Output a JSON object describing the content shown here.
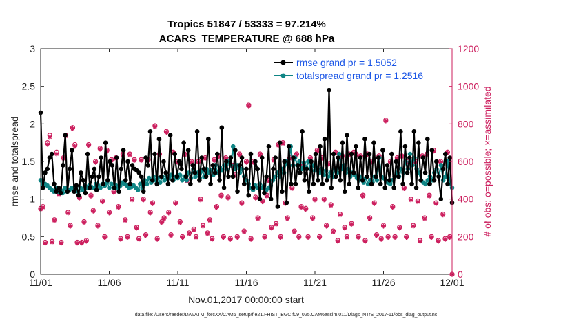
{
  "chart_data": {
    "type": "line",
    "title": "Tropics 51847 / 53333 = 97.214%",
    "subtitle": "ACARS_TEMPERATURE @ 688 hPa",
    "xlabel": "Nov.01,2017 00:00:00 start",
    "ylabel": "rmse and totalspread",
    "y2label": "# of obs: o=possible; ×=assimilated",
    "x_ticks": [
      "11/01",
      "11/06",
      "11/11",
      "11/16",
      "11/21",
      "11/26",
      "12/01"
    ],
    "x_range_days": [
      0,
      30
    ],
    "ylim": [
      0,
      3
    ],
    "y_ticks": [
      "0",
      "0.5",
      "1",
      "1.5",
      "2",
      "2.5",
      "3"
    ],
    "y2lim": [
      0,
      1200
    ],
    "y2_ticks": [
      "0",
      "200",
      "400",
      "600",
      "800",
      "1000",
      "1200"
    ],
    "footnote": "data file: /Users/raeder/DAI/ATM_forcXX/CAM6_setup/f.e21.FHIST_BGC.f09_025.CAM6assim.011/Diags_NTrS_2017-11/obs_diag_output.nc",
    "colors": {
      "rmse": "#000000",
      "spread": "#0f8585",
      "obs": "#cc1f5e",
      "legend_text": "#1a55e6"
    },
    "series": [
      {
        "name": "rmse",
        "legend": "rmse grand pr = 1.5052",
        "values": [
          2.15,
          1.15,
          1.35,
          1.4,
          1.55,
          1.6,
          1.2,
          1.1,
          1.15,
          1.08,
          1.45,
          1.85,
          1.1,
          1.4,
          1.65,
          1.1,
          1.18,
          1.05,
          1.35,
          1.25,
          1.08,
          1.6,
          1.15,
          1.3,
          1.4,
          1.12,
          1.3,
          1.55,
          1.2,
          1.75,
          1.25,
          1.5,
          1.45,
          1.15,
          1.55,
          1.1,
          1.4,
          1.65,
          1.25,
          1.5,
          1.2,
          1.45,
          1.4,
          1.38,
          1.35,
          1.3,
          1.1,
          1.55,
          1.45,
          1.9,
          1.25,
          1.6,
          1.2,
          1.8,
          1.3,
          1.5,
          1.35,
          1.2,
          1.85,
          1.25,
          1.6,
          1.3,
          1.5,
          1.4,
          1.75,
          1.3,
          1.65,
          1.2,
          1.45,
          1.35,
          1.9,
          1.25,
          1.55,
          1.4,
          1.3,
          1.8,
          1.2,
          1.45,
          1.35,
          1.6,
          1.25,
          1.95,
          1.15,
          1.5,
          1.3,
          1.55,
          1.3,
          1.65,
          1.1,
          1.45,
          1.55,
          1.2,
          1.4,
          1.05,
          1.6,
          1.15,
          1.5,
          1.4,
          1.0,
          1.55,
          1.08,
          1.3,
          1.7,
          1.0,
          1.4,
          1.55,
          0.9,
          1.75,
          1.1,
          1.5,
          0.95,
          1.7,
          1.2,
          1.55,
          1.2,
          1.45,
          1.35,
          1.9,
          1.25,
          1.4,
          1.1,
          1.5,
          1.2,
          1.6,
          1.25,
          1.7,
          1.2,
          1.8,
          1.25,
          2.45,
          1.15,
          1.6,
          1.3,
          1.55,
          1.25,
          1.75,
          1.1,
          1.85,
          1.2,
          1.6,
          1.35,
          1.7,
          1.15,
          1.55,
          1.25,
          1.8,
          1.3,
          1.6,
          1.2,
          1.75,
          1.3,
          1.55,
          1.2,
          1.65,
          1.15,
          1.45,
          1.25,
          1.6,
          1.15,
          1.5,
          1.3,
          1.9,
          1.2,
          1.7,
          1.35,
          1.55,
          1.2,
          1.9,
          1.15,
          1.75,
          1.25,
          1.55,
          1.35,
          1.8,
          1.2,
          1.65,
          1.25,
          1.5,
          1.3,
          1.0,
          1.4,
          1.6,
          1.2,
          1.55,
          0.95
        ]
      },
      {
        "name": "totalspread",
        "legend": "totalspread grand pr = 1.2516",
        "values": [
          1.25,
          1.15,
          1.2,
          1.18,
          1.15,
          1.12,
          1.1,
          1.15,
          1.1,
          1.12,
          1.08,
          1.15,
          1.1,
          1.12,
          1.15,
          1.15,
          1.12,
          1.1,
          1.15,
          1.12,
          1.18,
          1.15,
          1.18,
          1.16,
          1.15,
          1.2,
          1.18,
          1.15,
          1.2,
          1.18,
          1.22,
          1.15,
          1.2,
          1.15,
          1.18,
          1.15,
          1.18,
          1.22,
          1.2,
          1.18,
          1.15,
          1.16,
          1.18,
          1.15,
          1.12,
          1.2,
          1.15,
          1.25,
          1.2,
          1.28,
          1.22,
          1.3,
          1.25,
          1.28,
          1.22,
          1.3,
          1.25,
          1.3,
          1.28,
          1.32,
          1.25,
          1.3,
          1.28,
          1.32,
          1.25,
          1.3,
          1.25,
          1.35,
          1.28,
          1.4,
          1.3,
          1.35,
          1.28,
          1.38,
          1.3,
          1.4,
          1.35,
          1.38,
          1.32,
          1.45,
          1.35,
          1.42,
          1.38,
          1.45,
          1.4,
          1.5,
          1.45,
          1.7,
          1.4,
          1.45,
          1.35,
          1.4,
          1.3,
          1.25,
          1.2,
          1.15,
          1.12,
          1.18,
          1.15,
          1.2,
          1.15,
          1.18,
          1.12,
          1.15,
          1.18,
          1.25,
          1.3,
          1.35,
          1.3,
          1.4,
          1.35,
          1.5,
          1.45,
          1.7,
          1.45,
          1.55,
          1.45,
          1.5,
          1.4,
          1.48,
          1.42,
          1.5,
          1.4,
          1.45,
          1.38,
          1.42,
          1.35,
          1.4,
          1.32,
          1.38,
          1.3,
          1.35,
          1.3,
          1.4,
          1.35,
          1.6,
          1.4,
          1.45,
          1.35,
          1.4,
          1.3,
          1.35,
          1.32,
          1.28,
          1.25,
          1.3,
          1.22,
          1.28,
          1.2,
          1.25,
          1.22,
          1.3,
          1.25,
          1.55,
          1.3,
          1.28,
          1.25,
          1.22,
          1.2,
          1.25,
          1.3,
          1.35,
          1.3,
          1.4,
          1.35,
          1.5,
          1.4,
          1.6,
          1.45,
          1.55,
          1.4,
          1.35,
          1.25,
          1.22,
          1.2,
          1.25,
          1.3,
          1.25,
          1.35,
          1.4,
          1.3,
          1.45,
          1.25,
          1.3,
          1.5,
          1.2,
          1.15
        ]
      },
      {
        "name": "obs_possible",
        "marker": "o",
        "values": [
          350,
          360,
          170,
          700,
          740,
          175,
          290,
          650,
          430,
          170,
          620,
          740,
          330,
          260,
          780,
          690,
          170,
          410,
          170,
          280,
          180,
          690,
          420,
          340,
          600,
          260,
          670,
          390,
          200,
          660,
          330,
          610,
          440,
          620,
          360,
          190,
          640,
          290,
          200,
          640,
          400,
          610,
          250,
          190,
          610,
          400,
          210,
          610,
          330,
          380,
          790,
          190,
          640,
          280,
          300,
          760,
          330,
          210,
          650,
          380,
          600,
          280,
          200,
          640,
          500,
          220,
          600,
          240,
          200,
          600,
          400,
          260,
          620,
          220,
          290,
          190,
          610,
          360,
          630,
          420,
          200,
          620,
          410,
          190,
          580,
          530,
          200,
          640,
          380,
          230,
          600,
          900,
          190,
          600,
          410,
          300,
          640,
          390,
          200,
          420,
          500,
          250,
          610,
          270,
          690,
          200,
          700,
          380,
          300,
          620,
          460,
          230,
          640,
          200,
          360,
          580,
          350,
          200,
          620,
          300,
          400,
          660,
          200,
          620,
          400,
          260,
          590,
          370,
          230,
          650,
          180,
          320,
          630,
          250,
          200,
          640,
          270,
          650,
          640,
          200,
          630,
          420,
          180,
          640,
          300,
          600,
          380,
          210,
          630,
          190,
          260,
          820,
          200,
          600,
          360,
          200,
          620,
          250,
          630,
          460,
          200,
          600,
          400,
          260,
          600,
          390,
          180,
          630,
          300,
          640,
          420,
          200,
          660,
          380,
          180,
          600,
          320,
          190,
          650,
          200,
          0
        ]
      },
      {
        "name": "obs_assimilated",
        "marker": "*",
        "values": [
          345,
          355,
          165,
          690,
          730,
          170,
          285,
          640,
          425,
          165,
          615,
          735,
          325,
          255,
          775,
          680,
          165,
          405,
          165,
          275,
          175,
          685,
          415,
          335,
          595,
          255,
          665,
          385,
          195,
          655,
          325,
          605,
          435,
          615,
          355,
          185,
          635,
          285,
          195,
          635,
          395,
          605,
          245,
          185,
          605,
          395,
          205,
          605,
          325,
          375,
          785,
          185,
          635,
          275,
          295,
          755,
          325,
          205,
          645,
          375,
          595,
          275,
          195,
          635,
          495,
          215,
          595,
          235,
          195,
          595,
          395,
          255,
          615,
          215,
          285,
          185,
          605,
          355,
          625,
          415,
          195,
          615,
          405,
          185,
          575,
          525,
          195,
          635,
          375,
          225,
          595,
          895,
          185,
          595,
          405,
          295,
          635,
          385,
          195,
          415,
          495,
          245,
          605,
          265,
          685,
          195,
          695,
          375,
          295,
          615,
          455,
          225,
          635,
          195,
          355,
          575,
          345,
          195,
          615,
          295,
          395,
          655,
          195,
          615,
          395,
          255,
          585,
          365,
          225,
          645,
          175,
          315,
          625,
          245,
          195,
          635,
          265,
          645,
          635,
          195,
          625,
          415,
          175,
          635,
          295,
          595,
          375,
          205,
          625,
          185,
          255,
          815,
          195,
          595,
          355,
          195,
          615,
          245,
          625,
          455,
          195,
          595,
          395,
          255,
          595,
          385,
          175,
          625,
          295,
          635,
          415,
          195,
          655,
          375,
          175,
          595,
          315,
          185,
          645,
          195,
          0
        ]
      }
    ]
  }
}
